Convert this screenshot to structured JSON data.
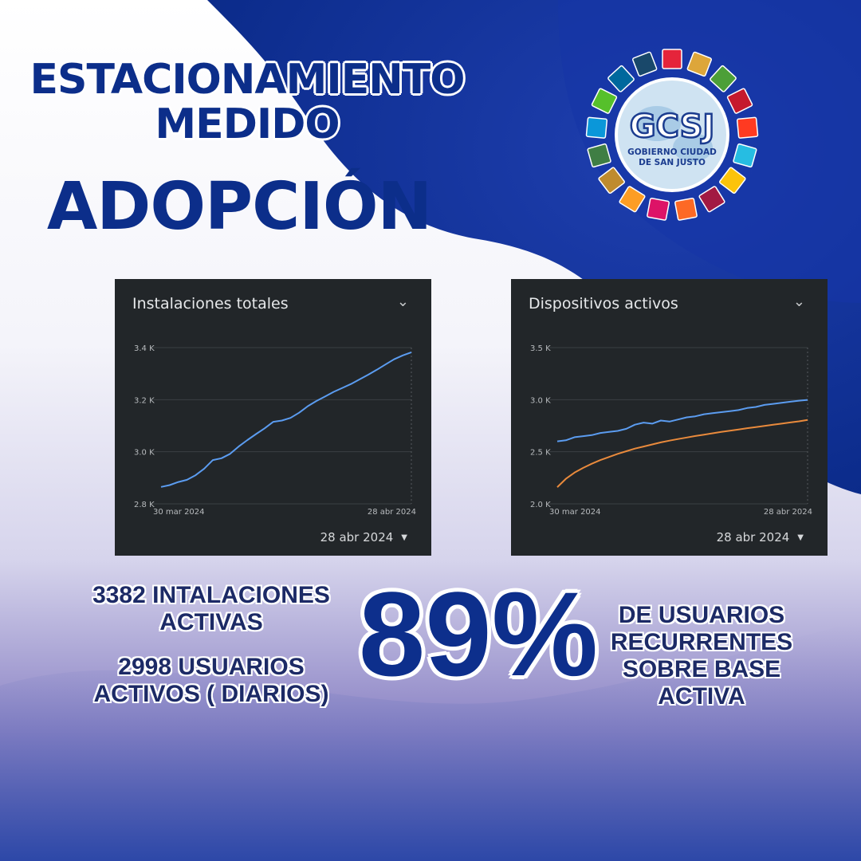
{
  "header": {
    "title_line1": "ESTACIONAMIENTO",
    "title_line2": "MEDIDO",
    "subtitle": "ADOPCIÓN"
  },
  "logo": {
    "acronym": "GCSJ",
    "name_line1": "GOBIERNO CIUDAD",
    "name_line2": "DE SAN JUSTO"
  },
  "chart_data": [
    {
      "type": "line",
      "title": "Instalaciones totales",
      "x": [
        "30 mar 2024",
        "31 mar",
        "1 abr",
        "2 abr",
        "3 abr",
        "4 abr",
        "5 abr",
        "6 abr",
        "7 abr",
        "8 abr",
        "9 abr",
        "10 abr",
        "11 abr",
        "12 abr",
        "13 abr",
        "14 abr",
        "15 abr",
        "16 abr",
        "17 abr",
        "18 abr",
        "19 abr",
        "20 abr",
        "21 abr",
        "22 abr",
        "23 abr",
        "24 abr",
        "25 abr",
        "26 abr",
        "27 abr",
        "28 abr 2024"
      ],
      "x_tick_labels": [
        "30 mar 2024",
        "28 abr 2024"
      ],
      "y_tick_labels": [
        "3.4 K",
        "3.2 K",
        "3.0 K",
        "2.8 K"
      ],
      "ylim": [
        2800,
        3400
      ],
      "series": [
        {
          "color": "#5b9cf0",
          "values": [
            2865,
            2872,
            2884,
            2892,
            2910,
            2935,
            2968,
            2975,
            2992,
            3020,
            3045,
            3068,
            3090,
            3115,
            3120,
            3130,
            3150,
            3175,
            3195,
            3212,
            3230,
            3245,
            3260,
            3278,
            3296,
            3315,
            3335,
            3355,
            3370,
            3382
          ]
        }
      ],
      "date_selector": "28 abr 2024",
      "grid": true
    },
    {
      "type": "line",
      "title": "Dispositivos activos",
      "x": [
        "30 mar 2024",
        "31 mar",
        "1 abr",
        "2 abr",
        "3 abr",
        "4 abr",
        "5 abr",
        "6 abr",
        "7 abr",
        "8 abr",
        "9 abr",
        "10 abr",
        "11 abr",
        "12 abr",
        "13 abr",
        "14 abr",
        "15 abr",
        "16 abr",
        "17 abr",
        "18 abr",
        "19 abr",
        "20 abr",
        "21 abr",
        "22 abr",
        "23 abr",
        "24 abr",
        "25 abr",
        "26 abr",
        "27 abr",
        "28 abr 2024"
      ],
      "x_tick_labels": [
        "30 mar 2024",
        "28 abr 2024"
      ],
      "y_tick_labels": [
        "3.5 K",
        "3.0 K",
        "2.5 K",
        "2.0 K"
      ],
      "ylim": [
        2000,
        3500
      ],
      "series": [
        {
          "color": "#5b9cf0",
          "values": [
            2600,
            2610,
            2640,
            2650,
            2660,
            2680,
            2690,
            2700,
            2720,
            2760,
            2780,
            2770,
            2800,
            2790,
            2810,
            2830,
            2840,
            2860,
            2870,
            2880,
            2890,
            2900,
            2920,
            2930,
            2950,
            2960,
            2970,
            2980,
            2990,
            2998
          ]
        },
        {
          "color": "#e98a3c",
          "values": [
            2160,
            2240,
            2300,
            2345,
            2385,
            2420,
            2450,
            2480,
            2505,
            2530,
            2550,
            2570,
            2590,
            2607,
            2622,
            2637,
            2651,
            2664,
            2677,
            2690,
            2702,
            2714,
            2726,
            2737,
            2748,
            2759,
            2770,
            2781,
            2792,
            2805
          ]
        }
      ],
      "date_selector": "28 abr 2024",
      "grid": true
    }
  ],
  "stats": {
    "installs_line1": "3382 INTALACIONES",
    "installs_line2": "ACTIVAS",
    "users_line1": "2998 USUARIOS",
    "users_line2": "ACTIVOS ( DIARIOS)",
    "percentage": "89%",
    "pct_line1": "DE USUARIOS",
    "pct_line2": "RECURRENTES",
    "pct_line3": "SOBRE BASE",
    "pct_line4": "ACTIVA"
  },
  "colors": {
    "brand_blue": "#0c2e8a",
    "card_bg": "#222629",
    "line_blue": "#5b9cf0",
    "line_orange": "#e98a3c"
  }
}
